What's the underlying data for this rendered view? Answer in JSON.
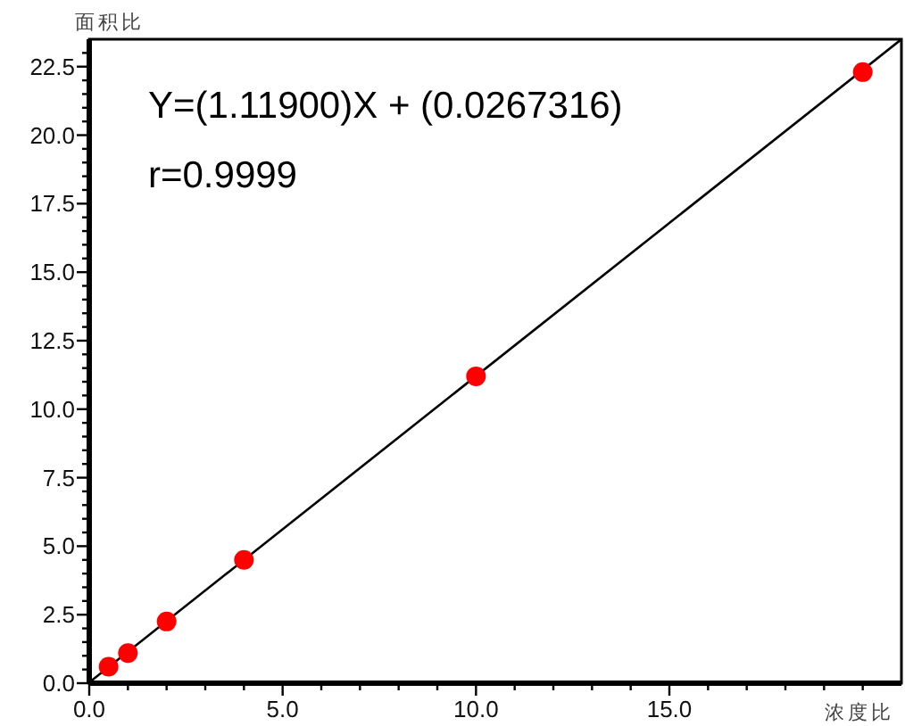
{
  "chart_data": {
    "type": "scatter",
    "xlabel": "浓度比",
    "ylabel": "面积比",
    "annotations": [
      "Y=(1.11900)X + (0.0267316)",
      "r=0.9999"
    ],
    "xlim": [
      0,
      21
    ],
    "ylim": [
      0,
      23.5
    ],
    "xticks": [
      {
        "value": 0,
        "label": "0.0"
      },
      {
        "value": 1,
        "label": null
      },
      {
        "value": 2,
        "label": null
      },
      {
        "value": 3,
        "label": null
      },
      {
        "value": 4,
        "label": null
      },
      {
        "value": 5,
        "label": "5.0"
      },
      {
        "value": 6,
        "label": null
      },
      {
        "value": 7,
        "label": null
      },
      {
        "value": 8,
        "label": null
      },
      {
        "value": 9,
        "label": null
      },
      {
        "value": 10,
        "label": "10.0"
      },
      {
        "value": 11,
        "label": null
      },
      {
        "value": 12,
        "label": null
      },
      {
        "value": 13,
        "label": null
      },
      {
        "value": 14,
        "label": null
      },
      {
        "value": 15,
        "label": "15.0"
      },
      {
        "value": 16,
        "label": null
      },
      {
        "value": 17,
        "label": null
      },
      {
        "value": 18,
        "label": null
      },
      {
        "value": 19,
        "label": null
      },
      {
        "value": 20,
        "label": null
      }
    ],
    "yticks": [
      {
        "value": 0,
        "label": "0.0"
      },
      {
        "value": 0.5,
        "label": null
      },
      {
        "value": 1,
        "label": null
      },
      {
        "value": 1.5,
        "label": null
      },
      {
        "value": 2,
        "label": null
      },
      {
        "value": 2.5,
        "label": "2.5"
      },
      {
        "value": 3,
        "label": null
      },
      {
        "value": 3.5,
        "label": null
      },
      {
        "value": 4,
        "label": null
      },
      {
        "value": 4.5,
        "label": null
      },
      {
        "value": 5,
        "label": "5.0"
      },
      {
        "value": 5.5,
        "label": null
      },
      {
        "value": 6,
        "label": null
      },
      {
        "value": 6.5,
        "label": null
      },
      {
        "value": 7,
        "label": null
      },
      {
        "value": 7.5,
        "label": "7.5"
      },
      {
        "value": 8,
        "label": null
      },
      {
        "value": 8.5,
        "label": null
      },
      {
        "value": 9,
        "label": null
      },
      {
        "value": 9.5,
        "label": null
      },
      {
        "value": 10,
        "label": "10.0"
      },
      {
        "value": 10.5,
        "label": null
      },
      {
        "value": 11,
        "label": null
      },
      {
        "value": 11.5,
        "label": null
      },
      {
        "value": 12,
        "label": null
      },
      {
        "value": 12.5,
        "label": "12.5"
      },
      {
        "value": 13,
        "label": null
      },
      {
        "value": 13.5,
        "label": null
      },
      {
        "value": 14,
        "label": null
      },
      {
        "value": 14.5,
        "label": null
      },
      {
        "value": 15,
        "label": "15.0"
      },
      {
        "value": 15.5,
        "label": null
      },
      {
        "value": 16,
        "label": null
      },
      {
        "value": 16.5,
        "label": null
      },
      {
        "value": 17,
        "label": null
      },
      {
        "value": 17.5,
        "label": "17.5"
      },
      {
        "value": 18,
        "label": null
      },
      {
        "value": 18.5,
        "label": null
      },
      {
        "value": 19,
        "label": null
      },
      {
        "value": 19.5,
        "label": null
      },
      {
        "value": 20,
        "label": "20.0"
      },
      {
        "value": 20.5,
        "label": null
      },
      {
        "value": 21,
        "label": null
      },
      {
        "value": 21.5,
        "label": null
      },
      {
        "value": 22,
        "label": null
      },
      {
        "value": 22.5,
        "label": "22.5"
      },
      {
        "value": 23,
        "label": null
      }
    ],
    "grid": false,
    "marker": "circle",
    "series": [
      {
        "type": "line",
        "color": "#000000",
        "x": [
          0,
          21
        ],
        "values": [
          0.03,
          23.5
        ],
        "marker": "none"
      },
      {
        "color": "#ff0000",
        "x": [
          0.5,
          1,
          2,
          4,
          10,
          20
        ],
        "values": [
          0.6,
          1.1,
          2.25,
          4.5,
          11.2,
          22.3
        ]
      }
    ]
  }
}
